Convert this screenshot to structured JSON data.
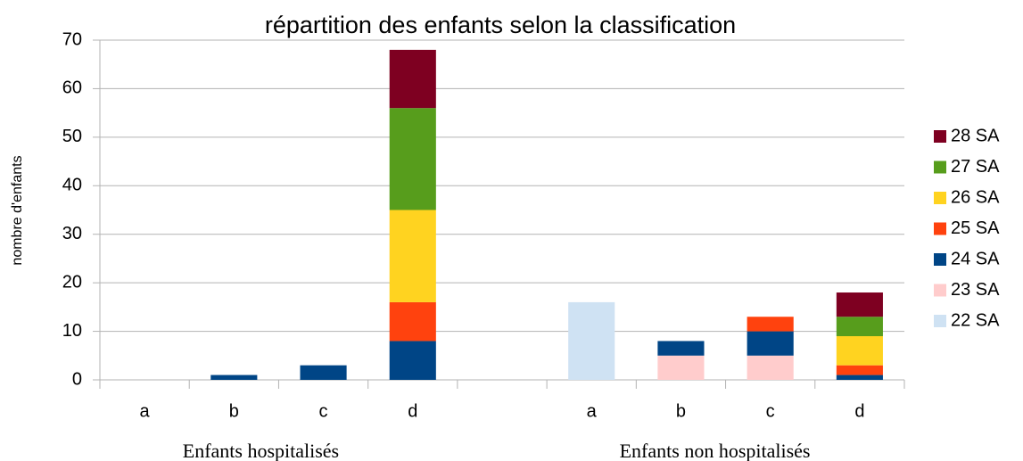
{
  "chart_data": {
    "type": "stacked_bar",
    "title": "répartition des enfants selon la classification",
    "y_label": "nombre d'enfants",
    "categories": [
      "a",
      "b",
      "c",
      "d",
      null,
      "a",
      "b",
      "c",
      "d"
    ],
    "group_labels": [
      "Enfants hospitalisés",
      "Enfants non hospitalisés"
    ],
    "series": [
      {
        "name": "22 SA",
        "color": "#cfe2f3",
        "values": [
          0,
          0,
          0,
          0,
          null,
          16,
          0,
          0,
          0
        ]
      },
      {
        "name": "23 SA",
        "color": "#ffcccc",
        "values": [
          0,
          0,
          0,
          0,
          null,
          0,
          5,
          5,
          0
        ]
      },
      {
        "name": "24 SA",
        "color": "#004586",
        "values": [
          0,
          1,
          3,
          8,
          null,
          0,
          3,
          5,
          1
        ]
      },
      {
        "name": "25 SA",
        "color": "#ff420e",
        "values": [
          0,
          0,
          0,
          8,
          null,
          0,
          0,
          3,
          2
        ]
      },
      {
        "name": "26 SA",
        "color": "#ffd320",
        "values": [
          0,
          0,
          0,
          19,
          null,
          0,
          0,
          0,
          6
        ]
      },
      {
        "name": "27 SA",
        "color": "#579d1c",
        "values": [
          0,
          0,
          0,
          21,
          null,
          0,
          0,
          0,
          4
        ]
      },
      {
        "name": "28 SA",
        "color": "#7e0021",
        "values": [
          0,
          0,
          0,
          12,
          null,
          0,
          0,
          0,
          5
        ]
      }
    ],
    "ylim": [
      0,
      70
    ],
    "yticks": [
      0,
      10,
      20,
      30,
      40,
      50,
      60,
      70
    ],
    "grid": true,
    "legend": "right"
  }
}
